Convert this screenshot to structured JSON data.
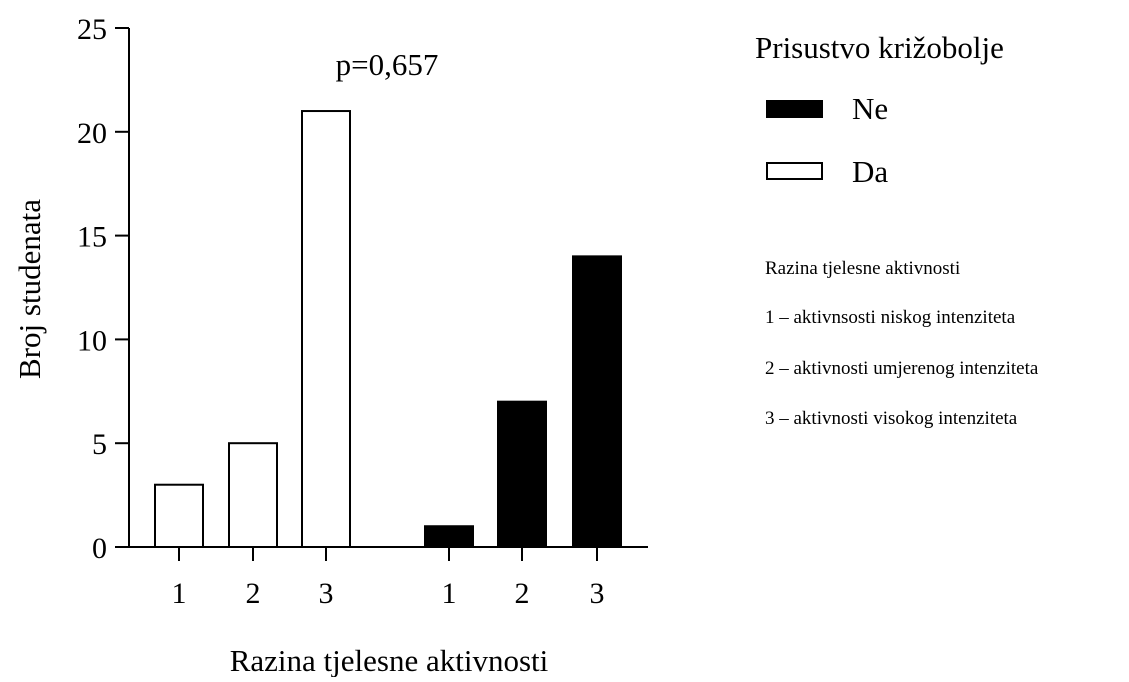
{
  "chart_data": {
    "type": "bar",
    "xlabel": "Razina tjelesne aktivnosti",
    "ylabel": "Broj studenata",
    "ylim": [
      0,
      25
    ],
    "yticks": [
      0,
      5,
      10,
      15,
      20,
      25
    ],
    "grid": false,
    "annotation": "p=0,657",
    "legend": {
      "title": "Prisustvo križobolje",
      "placement": "right",
      "entries": [
        {
          "label": "Ne",
          "color": "#000000"
        },
        {
          "label": "Da",
          "color": "#ffffff"
        }
      ]
    },
    "groups": [
      {
        "series": "Da",
        "color": "#ffffff",
        "categories": [
          "1",
          "2",
          "3"
        ],
        "values": [
          3,
          5,
          21
        ]
      },
      {
        "series": "Ne",
        "color": "#000000",
        "categories": [
          "1",
          "2",
          "3"
        ],
        "values": [
          1,
          7,
          14
        ]
      }
    ],
    "note": {
      "title": "Razina tjelesne aktivnosti",
      "lines": [
        "1 – aktivnsosti niskog intenziteta",
        "2 – aktivnosti umjerenog intenziteta",
        "3 – aktivnosti visokog intenziteta"
      ]
    }
  }
}
